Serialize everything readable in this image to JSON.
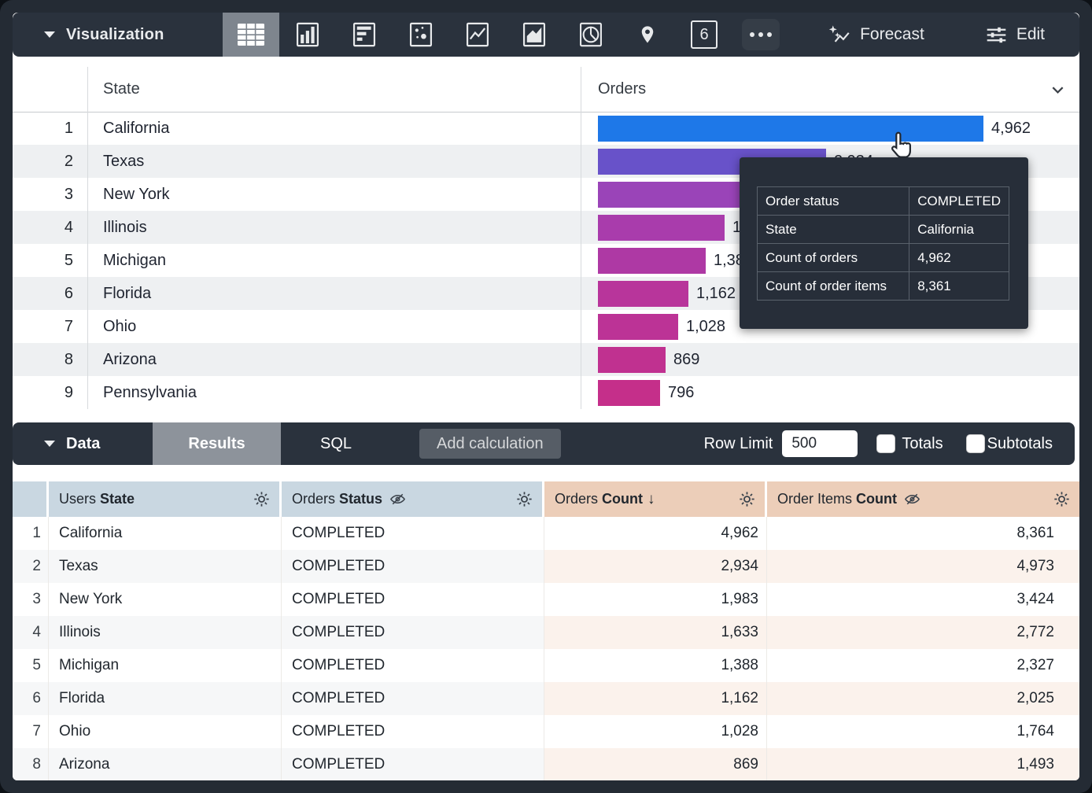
{
  "toolbar": {
    "visualization_label": "Visualization",
    "forecast_label": "Forecast",
    "edit_label": "Edit",
    "single_value_glyph": "6",
    "icons": [
      "table",
      "column-chart",
      "bar-chart",
      "scatter-chart",
      "line-chart",
      "area-chart",
      "pie-chart",
      "map",
      "single-value",
      "more-options"
    ],
    "selected_icon": "table"
  },
  "viz_table": {
    "header": {
      "state": "State",
      "orders": "Orders"
    },
    "max_value": 4962,
    "rows": [
      {
        "n": "1",
        "state": "California",
        "value": 4962,
        "value_label": "4,962",
        "color": "#1e78e8"
      },
      {
        "n": "2",
        "state": "Texas",
        "value": 2934,
        "value_label": "2,934",
        "color": "#6852c9"
      },
      {
        "n": "3",
        "state": "New York",
        "value": 1983,
        "value_label": "1,983",
        "color": "#9a44b8"
      },
      {
        "n": "4",
        "state": "Illinois",
        "value": 1633,
        "value_label": "1,633",
        "color": "#a93cac"
      },
      {
        "n": "5",
        "state": "Michigan",
        "value": 1388,
        "value_label": "1,388",
        "color": "#ae39a4"
      },
      {
        "n": "6",
        "state": "Florida",
        "value": 1162,
        "value_label": "1,162",
        "color": "#b8359b"
      },
      {
        "n": "7",
        "state": "Ohio",
        "value": 1028,
        "value_label": "1,028",
        "color": "#bc3396"
      },
      {
        "n": "8",
        "state": "Arizona",
        "value": 869,
        "value_label": "869",
        "color": "#c03190"
      },
      {
        "n": "9",
        "state": "Pennsylvania",
        "value": 796,
        "value_label": "796",
        "color": "#c52f8a"
      }
    ]
  },
  "tooltip": {
    "rows": [
      {
        "label": "Order status",
        "value": "COMPLETED"
      },
      {
        "label": "State",
        "value": "California"
      },
      {
        "label": "Count of orders",
        "value": "4,962"
      },
      {
        "label": "Count of order items",
        "value": "8,361"
      }
    ]
  },
  "data_bar": {
    "label": "Data",
    "tabs": [
      {
        "label": "Results",
        "active": true
      },
      {
        "label": "SQL",
        "active": false
      }
    ],
    "add_calculation_label": "Add calculation",
    "row_limit_label": "Row Limit",
    "row_limit_value": "500",
    "totals_label": "Totals",
    "subtotals_label": "Subtotals",
    "totals_checked": false,
    "subtotals_checked": false
  },
  "data_table": {
    "headers": [
      {
        "prefix": "Users",
        "bold": "State",
        "type": "dimension",
        "gear": true
      },
      {
        "prefix": "Orders",
        "bold": "Status",
        "type": "dimension",
        "hidden_from_viz": true,
        "gear": true
      },
      {
        "prefix": "Orders",
        "bold": "Count",
        "type": "measure",
        "sort": "desc",
        "gear": true
      },
      {
        "prefix": "Order Items",
        "bold": "Count",
        "type": "measure",
        "hidden_from_viz": true,
        "gear": true
      }
    ],
    "rows": [
      {
        "n": "1",
        "state": "California",
        "status": "COMPLETED",
        "orders_count": "4,962",
        "order_items_count": "8,361"
      },
      {
        "n": "2",
        "state": "Texas",
        "status": "COMPLETED",
        "orders_count": "2,934",
        "order_items_count": "4,973"
      },
      {
        "n": "3",
        "state": "New York",
        "status": "COMPLETED",
        "orders_count": "1,983",
        "order_items_count": "3,424"
      },
      {
        "n": "4",
        "state": "Illinois",
        "status": "COMPLETED",
        "orders_count": "1,633",
        "order_items_count": "2,772"
      },
      {
        "n": "5",
        "state": "Michigan",
        "status": "COMPLETED",
        "orders_count": "1,388",
        "order_items_count": "2,327"
      },
      {
        "n": "6",
        "state": "Florida",
        "status": "COMPLETED",
        "orders_count": "1,162",
        "order_items_count": "2,025"
      },
      {
        "n": "7",
        "state": "Ohio",
        "status": "COMPLETED",
        "orders_count": "1,028",
        "order_items_count": "1,764"
      },
      {
        "n": "8",
        "state": "Arizona",
        "status": "COMPLETED",
        "orders_count": "869",
        "order_items_count": "1,493"
      }
    ]
  },
  "colors": {
    "toolbar_bg": "#2a323d",
    "frame_bg": "#242b34",
    "selected_icon_bg": "#7e858e",
    "active_tab_bg": "#8d939b",
    "button_bg": "#565d66",
    "dimension_header_bg": "#c9d7e1",
    "measure_header_bg": "#ecceb9",
    "dimension_alt_row_bg": "#f6f7f8",
    "measure_alt_row_bg": "#fbf2ec",
    "viz_alt_row_bg": "#eef0f2",
    "first_bar_color": "#1e78e8"
  }
}
